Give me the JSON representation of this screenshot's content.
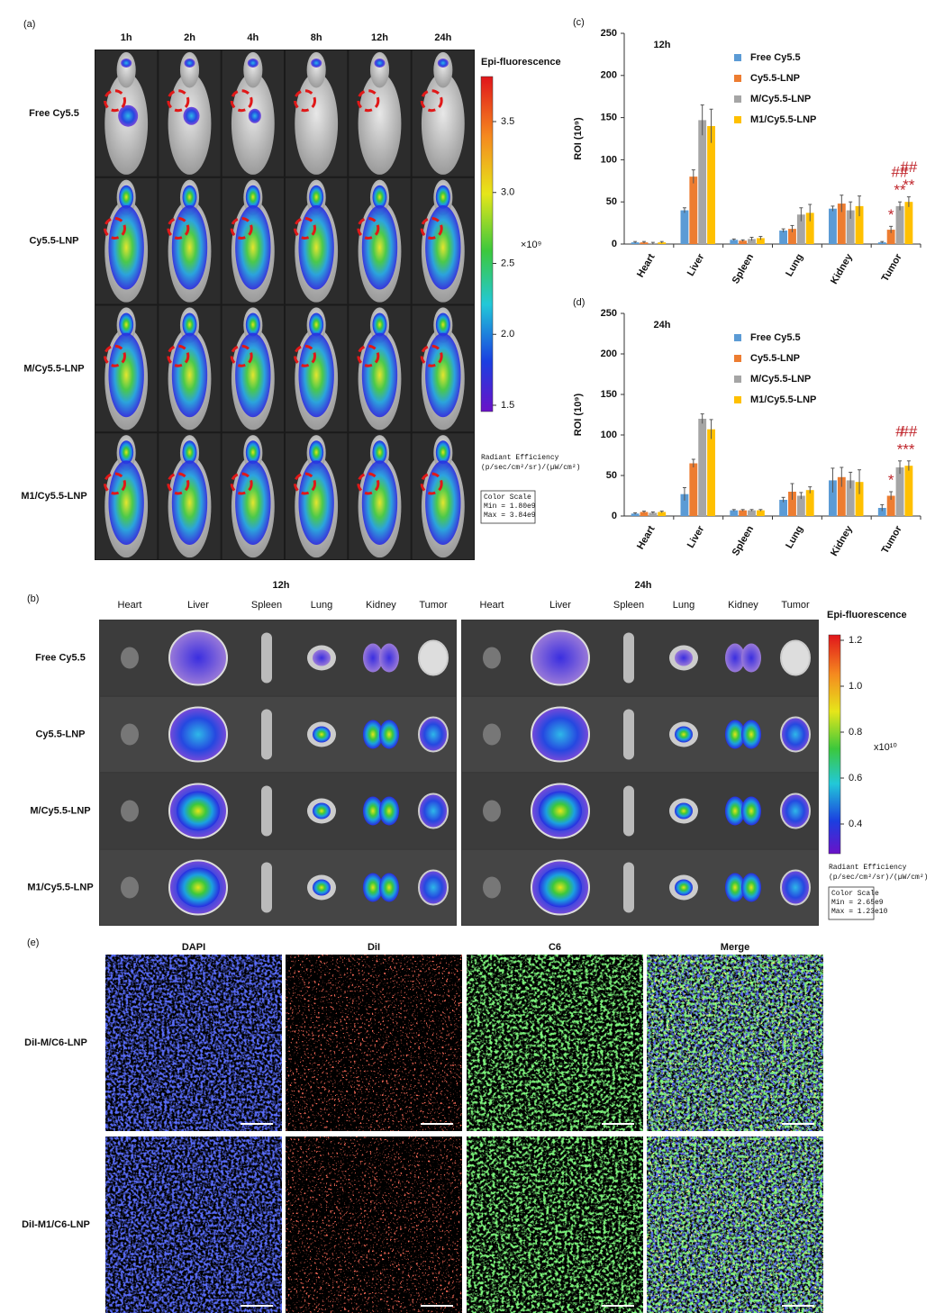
{
  "panel_a": {
    "label": "(a)",
    "columns": [
      "1h",
      "2h",
      "4h",
      "8h",
      "12h",
      "24h"
    ],
    "rows": [
      "Free Cy5.5",
      "Cy5.5-LNP",
      "M/Cy5.5-LNP",
      "M1/Cy5.5-LNP"
    ],
    "colorbar": {
      "title": "Epi-fluorescence",
      "ticks": [
        "3.5",
        "3.0",
        "2.5",
        "2.0",
        "1.5"
      ],
      "unit": "×10⁹",
      "legend": [
        "Radiant Efficiency",
        "(p/sec/cm²/sr)/(µW/cm²)"
      ],
      "scale": [
        "Color Scale",
        "Min = 1.80e9",
        "Max = 3.84e9"
      ]
    }
  },
  "panel_b": {
    "label": "(b)",
    "times": [
      "12h",
      "24h"
    ],
    "organs": [
      "Heart",
      "Liver",
      "Spleen",
      "Lung",
      "Kidney",
      "Tumor"
    ],
    "rows": [
      "Free Cy5.5",
      "Cy5.5-LNP",
      "M/Cy5.5-LNP",
      "M1/Cy5.5-LNP"
    ],
    "colorbar": {
      "title": "Epi-fluorescence",
      "ticks": [
        "1.2",
        "1.0",
        "0.8",
        "0.6",
        "0.4"
      ],
      "unit": "x10¹⁰",
      "legend": [
        "Radiant Efficiency",
        "(p/sec/cm²/sr)/(µW/cm²)"
      ],
      "scale": [
        "Color Scale",
        "Min = 2.65e9",
        "Max = 1.23e10"
      ]
    }
  },
  "panel_e": {
    "label": "(e)",
    "columns": [
      "DAPI",
      "DiI",
      "C6",
      "Merge"
    ],
    "rows": [
      "DiI-M/C6-LNP",
      "DiI-M1/C6-LNP"
    ]
  },
  "chart_data": [
    {
      "type": "bar",
      "panel_label": "(c)",
      "title": "12h",
      "y_label": "ROI (10⁹)",
      "categories": [
        "Heart",
        "Liver",
        "Spleen",
        "Lung",
        "Kidney",
        "Tumor"
      ],
      "ylim": [
        0,
        250
      ],
      "yticks": [
        0,
        50,
        100,
        150,
        200,
        250
      ],
      "annotation_color": "#c0272d",
      "series": [
        {
          "name": "Free Cy5.5",
          "color": "#5b9bd5",
          "values": [
            2,
            40,
            5,
            16,
            42,
            2
          ],
          "errors": [
            1,
            3,
            1,
            2,
            3,
            1
          ],
          "annotations": [
            null,
            null,
            null,
            null,
            null,
            null
          ]
        },
        {
          "name": "Cy5.5-LNP",
          "color": "#ed7d31",
          "values": [
            2,
            80,
            4,
            18,
            48,
            17
          ],
          "errors": [
            1,
            8,
            1,
            4,
            10,
            4
          ],
          "annotations": [
            null,
            null,
            null,
            null,
            null,
            [
              "*"
            ]
          ]
        },
        {
          "name": "M/Cy5.5-LNP",
          "color": "#a5a5a5",
          "values": [
            1,
            147,
            6,
            35,
            40,
            45
          ],
          "errors": [
            1,
            18,
            2,
            8,
            10,
            5
          ],
          "annotations": [
            null,
            null,
            null,
            null,
            null,
            [
              "**",
              "##"
            ]
          ]
        },
        {
          "name": "M1/Cy5.5-LNP",
          "color": "#ffc000",
          "values": [
            2,
            140,
            7,
            37,
            45,
            50
          ],
          "errors": [
            1,
            20,
            2,
            10,
            12,
            6
          ],
          "annotations": [
            null,
            null,
            null,
            null,
            null,
            [
              "**",
              "##"
            ]
          ]
        }
      ]
    },
    {
      "type": "bar",
      "panel_label": "(d)",
      "title": "24h",
      "y_label": "ROI (10⁹)",
      "categories": [
        "Heart",
        "Liver",
        "Spleen",
        "Lung",
        "Kidney",
        "Tumor"
      ],
      "ylim": [
        0,
        250
      ],
      "yticks": [
        0,
        50,
        100,
        150,
        200,
        250
      ],
      "annotation_color": "#c0272d",
      "series": [
        {
          "name": "Free Cy5.5",
          "color": "#5b9bd5",
          "values": [
            3,
            27,
            7,
            20,
            44,
            10
          ],
          "errors": [
            1,
            8,
            1,
            3,
            15,
            4
          ],
          "annotations": [
            null,
            null,
            null,
            null,
            null,
            null
          ]
        },
        {
          "name": "Cy5.5-LNP",
          "color": "#ed7d31",
          "values": [
            5,
            65,
            7,
            30,
            48,
            25
          ],
          "errors": [
            1,
            5,
            1,
            10,
            12,
            5
          ],
          "annotations": [
            null,
            null,
            null,
            null,
            null,
            [
              "*"
            ]
          ]
        },
        {
          "name": "M/Cy5.5-LNP",
          "color": "#a5a5a5",
          "values": [
            4,
            120,
            7,
            25,
            44,
            60
          ],
          "errors": [
            1,
            6,
            1,
            4,
            10,
            8
          ],
          "annotations": [
            null,
            null,
            null,
            null,
            null,
            [
              "*",
              "#"
            ]
          ]
        },
        {
          "name": "M1/Cy5.5-LNP",
          "color": "#ffc000",
          "values": [
            5,
            107,
            7,
            32,
            42,
            62
          ],
          "errors": [
            1,
            12,
            1,
            4,
            15,
            6
          ],
          "annotations": [
            null,
            null,
            null,
            null,
            null,
            [
              "**",
              "##"
            ]
          ]
        }
      ]
    }
  ]
}
